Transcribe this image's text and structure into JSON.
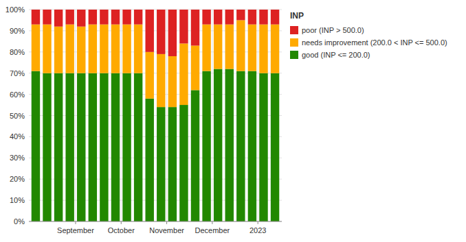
{
  "chart_data": {
    "type": "bar",
    "title": "INP",
    "stacked": true,
    "grid": true,
    "legend": "right",
    "categories": [
      null,
      null,
      null,
      null,
      null,
      null,
      null,
      null,
      null,
      null,
      null,
      null,
      null,
      null,
      null,
      null,
      null,
      null,
      null,
      null,
      null,
      null
    ],
    "xticks": [
      {
        "value": 3.5,
        "label": "September"
      },
      {
        "value": 7.5,
        "label": "October"
      },
      {
        "value": 11.5,
        "label": "November"
      },
      {
        "value": 15.5,
        "label": "December"
      },
      {
        "value": 19.5,
        "label": "2023"
      }
    ],
    "ylim": [
      0,
      100
    ],
    "yticks": [
      {
        "value": 0,
        "label": "0%"
      },
      {
        "value": 10,
        "label": "10%"
      },
      {
        "value": 20,
        "label": "20%"
      },
      {
        "value": 30,
        "label": "30%"
      },
      {
        "value": 40,
        "label": "40%"
      },
      {
        "value": 50,
        "label": "50%"
      },
      {
        "value": 60,
        "label": "60%"
      },
      {
        "value": 70,
        "label": "70%"
      },
      {
        "value": 80,
        "label": "80%"
      },
      {
        "value": 90,
        "label": "90%"
      },
      {
        "value": 100,
        "label": "100%"
      }
    ],
    "series": [
      {
        "name": "good (INP <= 200.0)",
        "color": "#228800",
        "values": [
          71,
          70,
          70,
          70,
          70,
          70,
          70,
          70,
          70,
          70,
          58,
          54,
          54,
          55,
          62,
          71,
          72,
          72,
          71,
          71,
          70,
          70
        ]
      },
      {
        "name": "needs improvement (200.0 < INP <= 500.0)",
        "color": "#ffaa00",
        "values": [
          22,
          23,
          22,
          23,
          22,
          23,
          23,
          23,
          23,
          23,
          22,
          25,
          24,
          29,
          21,
          22,
          21,
          21,
          24,
          22,
          23,
          23
        ]
      },
      {
        "name": "poor (INP > 500.0)",
        "color": "#dd2222",
        "values": [
          7,
          7,
          8,
          7,
          8,
          7,
          7,
          7,
          7,
          7,
          20,
          21,
          22,
          16,
          17,
          7,
          7,
          7,
          5,
          7,
          7,
          7
        ]
      }
    ]
  }
}
